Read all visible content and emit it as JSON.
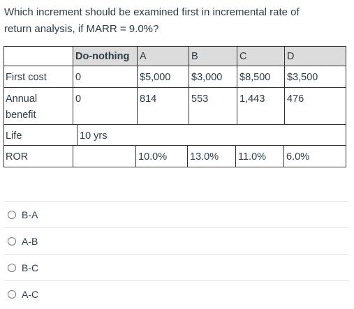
{
  "question": {
    "line1": "Which increment should be examined first in incremental rate of",
    "line2": "return analysis, if MARR = 9.0%?"
  },
  "table": {
    "headers": [
      "",
      "Do-nothing",
      "A",
      "B",
      "C",
      "D"
    ],
    "rows": [
      {
        "label": "First cost",
        "values": [
          "0",
          "$5,000",
          "$3,000",
          "$8,500",
          "$3,500"
        ]
      },
      {
        "label_line1": "Annual",
        "label_line2": "benefit",
        "values": [
          "0",
          "814",
          "553",
          "1,443",
          "476"
        ]
      },
      {
        "label": "Life",
        "value": "10 yrs"
      },
      {
        "label": "ROR",
        "values": [
          "",
          "10.0%",
          "13.0%",
          "11.0%",
          "6.0%"
        ]
      }
    ]
  },
  "choices": [
    {
      "label": "B-A"
    },
    {
      "label": "A-B"
    },
    {
      "label": "B-C"
    },
    {
      "label": "A-C"
    }
  ]
}
